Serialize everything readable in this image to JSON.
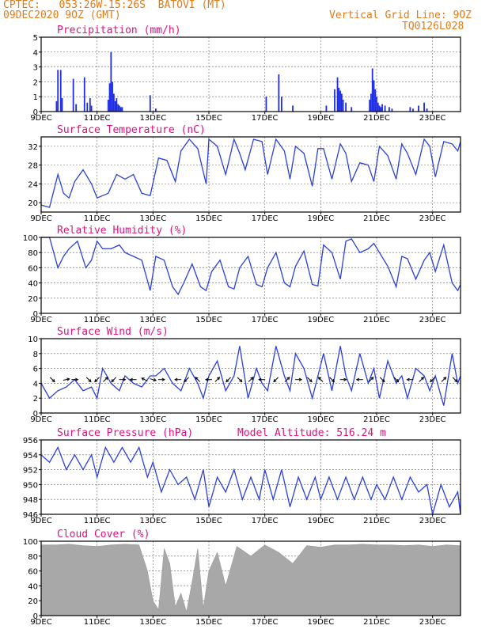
{
  "header": {
    "line1": "CPTEC:   053:26W-15:26S  BATOVI (MT)",
    "line2": "09DEC2020 9OZ (GMT)",
    "right1": "Vertical Grid Line: 9OZ",
    "right2": "TQ0126L028"
  },
  "model_altitude": "Model Altitude: 516.24 m",
  "x_ticks": [
    "9DEC",
    "11DEC",
    "13DEC",
    "15DEC",
    "17DEC",
    "19DEC",
    "21DEC",
    "23DEC"
  ],
  "x_range_days": [
    9,
    24
  ],
  "chart_data": [
    {
      "id": "precip",
      "type": "bar",
      "title": "Precipitation (mm/h)",
      "ylim": [
        0,
        5
      ],
      "yticks": [
        0,
        1,
        2,
        3,
        4,
        5
      ],
      "grid": true,
      "x": [
        9.55,
        9.6,
        9.7,
        9.75,
        10.15,
        10.25,
        10.55,
        10.65,
        10.75,
        10.8,
        11.4,
        11.45,
        11.5,
        11.55,
        11.6,
        11.65,
        11.7,
        11.75,
        11.8,
        11.85,
        11.9,
        12.9,
        13.1,
        17.05,
        17.5,
        17.6,
        18.0,
        19.2,
        19.5,
        19.6,
        19.65,
        19.7,
        19.75,
        19.8,
        19.9,
        20.1,
        20.75,
        20.8,
        20.85,
        20.9,
        20.95,
        21.0,
        21.05,
        21.1,
        21.15,
        21.2,
        21.3,
        21.45,
        21.55,
        22.2,
        22.3,
        22.5,
        22.7,
        22.8
      ],
      "values": [
        0.7,
        2.8,
        2.8,
        0.9,
        2.2,
        0.5,
        2.3,
        0.6,
        0.9,
        0.4,
        0.8,
        1.9,
        4.0,
        2.0,
        1.2,
        0.7,
        0.9,
        0.5,
        0.4,
        0.3,
        0.3,
        1.1,
        0.2,
        1.0,
        2.5,
        1.0,
        0.4,
        0.4,
        1.5,
        2.3,
        1.6,
        1.4,
        1.2,
        0.8,
        0.6,
        0.3,
        0.8,
        1.2,
        2.9,
        2.1,
        1.5,
        1.0,
        0.6,
        0.4,
        0.3,
        0.5,
        0.4,
        0.3,
        0.2,
        0.3,
        0.2,
        0.4,
        0.6,
        0.2
      ]
    },
    {
      "id": "temp",
      "type": "line",
      "title": "Surface Temperature (nC)",
      "ylim": [
        18,
        34
      ],
      "yticks": [
        20,
        24,
        28,
        32
      ],
      "grid": true,
      "x": [
        9.0,
        9.3,
        9.6,
        9.8,
        10.0,
        10.2,
        10.5,
        10.8,
        11.0,
        11.2,
        11.4,
        11.7,
        12.0,
        12.3,
        12.6,
        12.9,
        13.2,
        13.5,
        13.8,
        14.0,
        14.3,
        14.6,
        14.9,
        15.0,
        15.3,
        15.6,
        15.9,
        16.1,
        16.3,
        16.6,
        16.9,
        17.1,
        17.4,
        17.7,
        17.9,
        18.1,
        18.4,
        18.7,
        18.9,
        19.1,
        19.4,
        19.7,
        19.9,
        20.1,
        20.4,
        20.7,
        20.9,
        21.1,
        21.4,
        21.7,
        21.9,
        22.1,
        22.4,
        22.7,
        22.9,
        23.1,
        23.4,
        23.7,
        23.9,
        24.0
      ],
      "values": [
        19.5,
        19.0,
        26.0,
        22.0,
        21.0,
        24.5,
        27.0,
        24.0,
        21.0,
        21.5,
        22.0,
        26.0,
        25.0,
        26.0,
        22.0,
        21.5,
        29.5,
        29.0,
        24.5,
        31.0,
        33.5,
        31.5,
        24.0,
        33.5,
        32.0,
        26.0,
        33.5,
        30.5,
        27.0,
        33.5,
        33.0,
        26.0,
        33.5,
        31.0,
        25.0,
        32.0,
        30.5,
        23.5,
        31.5,
        31.5,
        25.0,
        32.5,
        30.5,
        24.5,
        28.5,
        28.0,
        24.5,
        32.0,
        30.0,
        25.0,
        32.5,
        30.5,
        26.0,
        33.5,
        32.0,
        25.5,
        33.0,
        32.5,
        31.0,
        33.0
      ]
    },
    {
      "id": "rh",
      "type": "line",
      "title": "Relative Humidity (%)",
      "ylim": [
        0,
        100
      ],
      "yticks": [
        0,
        20,
        40,
        60,
        80,
        100
      ],
      "grid": true,
      "x": [
        9.0,
        9.3,
        9.6,
        9.8,
        10.0,
        10.3,
        10.6,
        10.8,
        11.0,
        11.2,
        11.5,
        11.8,
        12.0,
        12.3,
        12.6,
        12.9,
        13.1,
        13.4,
        13.7,
        13.9,
        14.1,
        14.4,
        14.7,
        14.9,
        15.1,
        15.4,
        15.7,
        15.9,
        16.1,
        16.4,
        16.7,
        16.9,
        17.1,
        17.4,
        17.7,
        17.9,
        18.1,
        18.4,
        18.7,
        18.9,
        19.1,
        19.4,
        19.7,
        19.9,
        20.1,
        20.4,
        20.7,
        20.9,
        21.1,
        21.4,
        21.7,
        21.9,
        22.1,
        22.4,
        22.7,
        22.9,
        23.1,
        23.4,
        23.7,
        23.9,
        24.0
      ],
      "values": [
        100,
        100,
        60,
        75,
        85,
        95,
        60,
        70,
        95,
        85,
        85,
        90,
        80,
        75,
        70,
        30,
        75,
        70,
        35,
        25,
        40,
        65,
        35,
        30,
        55,
        70,
        35,
        32,
        60,
        75,
        38,
        35,
        60,
        80,
        40,
        35,
        62,
        82,
        38,
        36,
        90,
        80,
        45,
        95,
        98,
        80,
        85,
        92,
        80,
        62,
        35,
        75,
        72,
        45,
        70,
        80,
        55,
        90,
        40,
        30,
        38
      ]
    },
    {
      "id": "wind",
      "type": "line",
      "title": "Surface Wind (m/s)",
      "ylim": [
        0,
        10
      ],
      "yticks": [
        0,
        2,
        4,
        6,
        8,
        10
      ],
      "grid": true,
      "x": [
        9.0,
        9.3,
        9.6,
        9.9,
        10.2,
        10.5,
        10.8,
        11.0,
        11.2,
        11.5,
        11.8,
        12.0,
        12.3,
        12.6,
        12.9,
        13.1,
        13.4,
        13.7,
        14.0,
        14.3,
        14.6,
        14.8,
        15.0,
        15.3,
        15.6,
        15.9,
        16.1,
        16.4,
        16.7,
        16.9,
        17.1,
        17.4,
        17.7,
        17.9,
        18.1,
        18.4,
        18.7,
        18.9,
        19.1,
        19.4,
        19.7,
        19.9,
        20.1,
        20.4,
        20.7,
        20.9,
        21.1,
        21.4,
        21.7,
        21.9,
        22.1,
        22.4,
        22.7,
        22.9,
        23.1,
        23.4,
        23.7,
        23.9,
        24.0
      ],
      "values": [
        4,
        2,
        3,
        3.5,
        4.5,
        3,
        3.5,
        2,
        6,
        4,
        3,
        5,
        4,
        3.5,
        5,
        5,
        6,
        4,
        3,
        6,
        4,
        2,
        5,
        7,
        3,
        5,
        9,
        2,
        6,
        4,
        3,
        9,
        5,
        3,
        8,
        6,
        2,
        5,
        8,
        3,
        9,
        5,
        3,
        8,
        4,
        6,
        2,
        7,
        4,
        5,
        2,
        6,
        5,
        3,
        5,
        1,
        8,
        4,
        5
      ]
    },
    {
      "id": "pres",
      "type": "line",
      "title": "Surface Pressure (hPa)",
      "ylim": [
        946,
        956
      ],
      "yticks": [
        946,
        948,
        950,
        952,
        954,
        956
      ],
      "grid": true,
      "x": [
        9.0,
        9.3,
        9.6,
        9.9,
        10.2,
        10.5,
        10.8,
        11.0,
        11.3,
        11.6,
        11.9,
        12.2,
        12.5,
        12.8,
        13.0,
        13.3,
        13.6,
        13.9,
        14.2,
        14.5,
        14.8,
        15.0,
        15.3,
        15.6,
        15.9,
        16.2,
        16.5,
        16.8,
        17.0,
        17.3,
        17.6,
        17.9,
        18.2,
        18.5,
        18.8,
        19.0,
        19.3,
        19.6,
        19.9,
        20.2,
        20.5,
        20.8,
        21.0,
        21.3,
        21.6,
        21.9,
        22.2,
        22.5,
        22.8,
        23.0,
        23.3,
        23.6,
        23.9,
        24.0
      ],
      "values": [
        954,
        953,
        955,
        952,
        954,
        952,
        954,
        951,
        955,
        953,
        955,
        953,
        955,
        951,
        953,
        949,
        952,
        950,
        951,
        948,
        952,
        947,
        951,
        949,
        952,
        948,
        951,
        948,
        952,
        948,
        952,
        947,
        951,
        948,
        951,
        948,
        951,
        948,
        951,
        948,
        951,
        948,
        950,
        948,
        951,
        948,
        951,
        949,
        950,
        946,
        950,
        947,
        949,
        946
      ]
    },
    {
      "id": "cloud",
      "type": "area",
      "title": "Cloud Cover (%)",
      "ylim": [
        0,
        100
      ],
      "yticks": [
        0,
        20,
        40,
        60,
        80,
        100
      ],
      "grid": true,
      "x": [
        9.0,
        9.5,
        10.0,
        10.5,
        11.0,
        11.5,
        12.0,
        12.5,
        12.8,
        13.0,
        13.2,
        13.4,
        13.6,
        13.8,
        14.0,
        14.2,
        14.4,
        14.6,
        14.8,
        15.0,
        15.3,
        15.6,
        16.0,
        16.5,
        17.0,
        17.5,
        18.0,
        18.5,
        19.0,
        19.5,
        20.0,
        20.5,
        21.0,
        21.5,
        22.0,
        22.5,
        23.0,
        23.5,
        24.0
      ],
      "values": [
        95,
        95,
        96,
        94,
        93,
        95,
        96,
        95,
        60,
        20,
        8,
        90,
        70,
        12,
        30,
        5,
        45,
        90,
        10,
        60,
        85,
        40,
        93,
        80,
        95,
        85,
        70,
        94,
        92,
        95,
        95,
        96,
        95,
        95,
        94,
        95,
        93,
        95,
        94
      ]
    }
  ],
  "wind_barbs": [
    {
      "day": 9.4,
      "u": 1,
      "v": -1
    },
    {
      "day": 9.9,
      "u": 1,
      "v": 0.2
    },
    {
      "day": 10.2,
      "u": 1,
      "v": 0
    },
    {
      "day": 10.7,
      "u": 1,
      "v": -1
    },
    {
      "day": 11.0,
      "u": -1,
      "v": -1
    },
    {
      "day": 11.3,
      "u": 1,
      "v": 1
    },
    {
      "day": 11.6,
      "u": -1,
      "v": -1
    },
    {
      "day": 11.9,
      "u": 1,
      "v": 0
    },
    {
      "day": 12.3,
      "u": -1,
      "v": 0
    },
    {
      "day": 12.7,
      "u": -1,
      "v": 0.5
    },
    {
      "day": 13.0,
      "u": 1,
      "v": -0.3
    },
    {
      "day": 13.3,
      "u": 1,
      "v": 0
    },
    {
      "day": 13.9,
      "u": -1,
      "v": 0
    },
    {
      "day": 14.2,
      "u": -1,
      "v": -1
    },
    {
      "day": 14.6,
      "u": -1,
      "v": 1
    },
    {
      "day": 15.0,
      "u": -1,
      "v": 0
    },
    {
      "day": 15.3,
      "u": 1,
      "v": 1
    },
    {
      "day": 15.7,
      "u": -1,
      "v": -1
    },
    {
      "day": 16.1,
      "u": 1,
      "v": -1
    },
    {
      "day": 16.5,
      "u": 1,
      "v": 1
    },
    {
      "day": 16.9,
      "u": -1,
      "v": 0
    },
    {
      "day": 17.4,
      "u": -1,
      "v": -1
    },
    {
      "day": 17.8,
      "u": 1,
      "v": 1
    },
    {
      "day": 18.2,
      "u": 1,
      "v": 0
    },
    {
      "day": 18.6,
      "u": 1,
      "v": -1
    },
    {
      "day": 19.0,
      "u": -1,
      "v": 1
    },
    {
      "day": 19.4,
      "u": 1,
      "v": -1
    },
    {
      "day": 19.8,
      "u": 1,
      "v": 0
    },
    {
      "day": 20.4,
      "u": -1,
      "v": 0
    },
    {
      "day": 20.8,
      "u": 1,
      "v": 1
    },
    {
      "day": 21.2,
      "u": 1,
      "v": -1
    },
    {
      "day": 21.7,
      "u": 1,
      "v": -1
    },
    {
      "day": 22.2,
      "u": -1,
      "v": 0
    },
    {
      "day": 22.6,
      "u": 1,
      "v": 1
    },
    {
      "day": 23.0,
      "u": -1,
      "v": -1
    },
    {
      "day": 23.4,
      "u": 1,
      "v": 1
    },
    {
      "day": 23.8,
      "u": 1,
      "v": -1
    }
  ],
  "colors": {
    "line": "#2a3fdc",
    "bar": "#1f2ee0",
    "fill": "#a8a8a8",
    "title": "#e0117f",
    "header": "#e07b1a"
  }
}
